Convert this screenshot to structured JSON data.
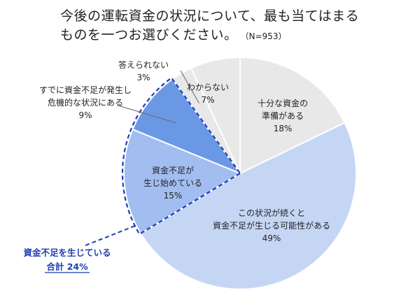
{
  "title": {
    "line1": "今後の運転資金の状況について、最も当てはまる",
    "line2": "ものを一つお選びください。",
    "sample": "（N=953）"
  },
  "chart_data": {
    "type": "pie",
    "slices": [
      {
        "label_lines": [
          "十分な資金の",
          "準備がある"
        ],
        "value": 18,
        "value_text": "18%",
        "color": "#e8e8e8"
      },
      {
        "label_lines": [
          "この状況が続くと",
          "資金不足が生じる可能性がある"
        ],
        "value": 49,
        "value_text": "49%",
        "color": "#c5d6f4"
      },
      {
        "label_lines": [
          "資金不足が",
          "生じ始めている"
        ],
        "value": 15,
        "value_text": "15%",
        "color": "#a2bdf0"
      },
      {
        "label_lines": [
          "すでに資金不足が発生し",
          "危機的な状況にある"
        ],
        "value": 9,
        "value_text": "9%",
        "color": "#6a98e5"
      },
      {
        "label_lines": [
          "答えられない"
        ],
        "value": 3,
        "value_text": "3%",
        "color": "#e8e8e8"
      },
      {
        "label_lines": [
          "わからない"
        ],
        "value": 7,
        "value_text": "7%",
        "color": "#e8e8e8"
      }
    ],
    "callout": {
      "line1": "資金不足を生じている",
      "line2": "合計 24%",
      "color": "#1f3fb5"
    }
  }
}
